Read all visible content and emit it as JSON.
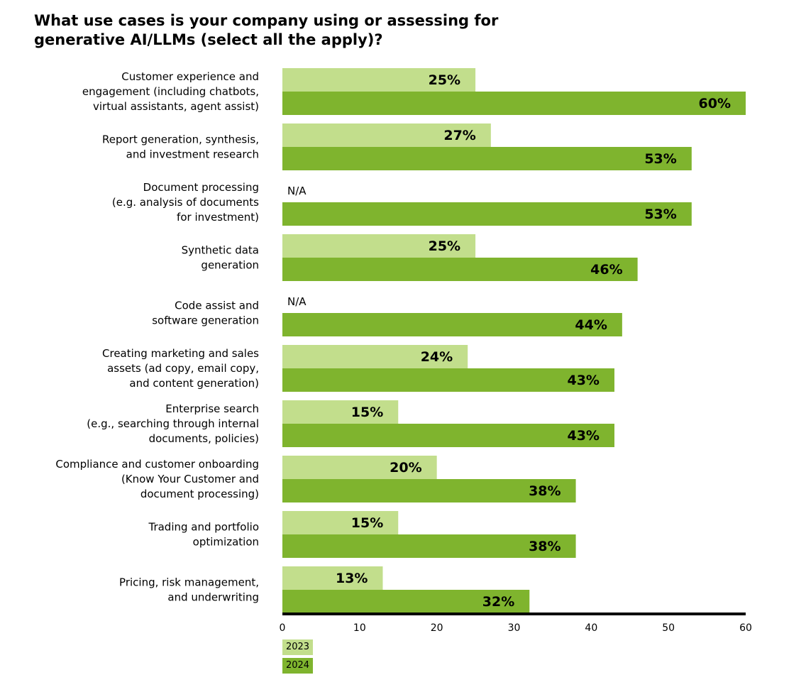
{
  "title": "What use cases is your company using or assessing for generative AI/LLMs (select all the apply)?",
  "colors": {
    "2023": "#c2de8c",
    "2024": "#7fb42e",
    "axis": "#000000"
  },
  "chart_data": {
    "type": "bar",
    "orientation": "horizontal",
    "categories": [
      [
        "Customer experience and",
        "engagement (including chatbots,",
        "virtual assistants, agent assist)"
      ],
      [
        "Report generation, synthesis,",
        "and investment research"
      ],
      [
        "Document processing",
        "(e.g. analysis of documents",
        "for investment)"
      ],
      [
        "Synthetic data",
        "generation"
      ],
      [
        "Code assist and",
        "software generation"
      ],
      [
        "Creating marketing and sales",
        "assets (ad copy, email copy,",
        "and content generation)"
      ],
      [
        "Enterprise search",
        "(e.g., searching through internal",
        "documents, policies)"
      ],
      [
        "Compliance and customer onboarding",
        "(Know Your Customer and",
        "document processing)"
      ],
      [
        "Trading and portfolio",
        "optimization"
      ],
      [
        "Pricing, risk management,",
        "and underwriting"
      ]
    ],
    "series": [
      {
        "name": "2023",
        "values": [
          25,
          27,
          null,
          25,
          null,
          24,
          15,
          20,
          15,
          13
        ],
        "labels": [
          "25%",
          "27%",
          "N/A",
          "25%",
          "N/A",
          "24%",
          "15%",
          "20%",
          "15%",
          "13%"
        ]
      },
      {
        "name": "2024",
        "values": [
          60,
          53,
          53,
          46,
          44,
          43,
          43,
          38,
          38,
          32
        ],
        "labels": [
          "60%",
          "53%",
          "53%",
          "46%",
          "44%",
          "43%",
          "43%",
          "38%",
          "38%",
          "32%"
        ]
      }
    ],
    "xlim": [
      0,
      60
    ],
    "xticks": [
      "0",
      "10",
      "20",
      "30",
      "40",
      "50",
      "60"
    ],
    "grid": false,
    "legend": "bottom-left"
  }
}
